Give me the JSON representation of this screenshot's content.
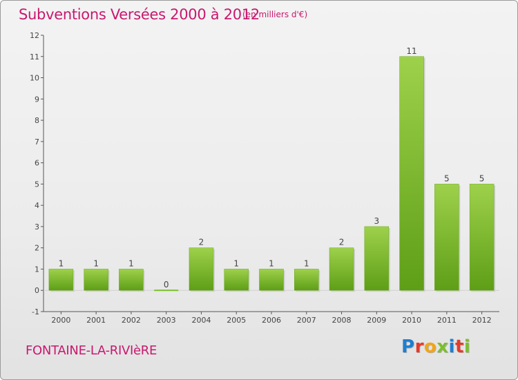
{
  "header": {
    "title": "Subventions Versées 2000 à 2012",
    "subtitle": "(en milliers d'€)"
  },
  "footer": {
    "commune": "FONTAINE-LA-RIVIèRE",
    "logo_letters": [
      {
        "char": "P",
        "color": "#1e7fd0"
      },
      {
        "char": "r",
        "color": "#e33b2a"
      },
      {
        "char": "o",
        "color": "#f2a516"
      },
      {
        "char": "x",
        "color": "#7cbf2b"
      },
      {
        "char": "i",
        "color": "#1e7fd0"
      },
      {
        "char": "t",
        "color": "#e33b2a"
      },
      {
        "char": "i",
        "color": "#7cbf2b"
      }
    ]
  },
  "chart_data": {
    "type": "bar",
    "title": "Subventions Versées 2000 à 2012",
    "subtitle": "(en milliers d'€)",
    "categories": [
      "2000",
      "2001",
      "2002",
      "2003",
      "2004",
      "2005",
      "2006",
      "2007",
      "2008",
      "2009",
      "2010",
      "2011",
      "2012"
    ],
    "values": [
      1,
      1,
      1,
      0,
      2,
      1,
      1,
      1,
      2,
      3,
      11,
      5,
      5
    ],
    "yticks": [
      -1,
      0,
      1,
      2,
      3,
      4,
      5,
      6,
      7,
      8,
      9,
      10,
      11,
      12
    ],
    "ylim": [
      -1,
      12
    ],
    "grid": false,
    "colors": {
      "bar_light": "#9ed14b",
      "bar_dark": "#5e9e17",
      "axis": "#555555",
      "label": "#444444"
    }
  }
}
